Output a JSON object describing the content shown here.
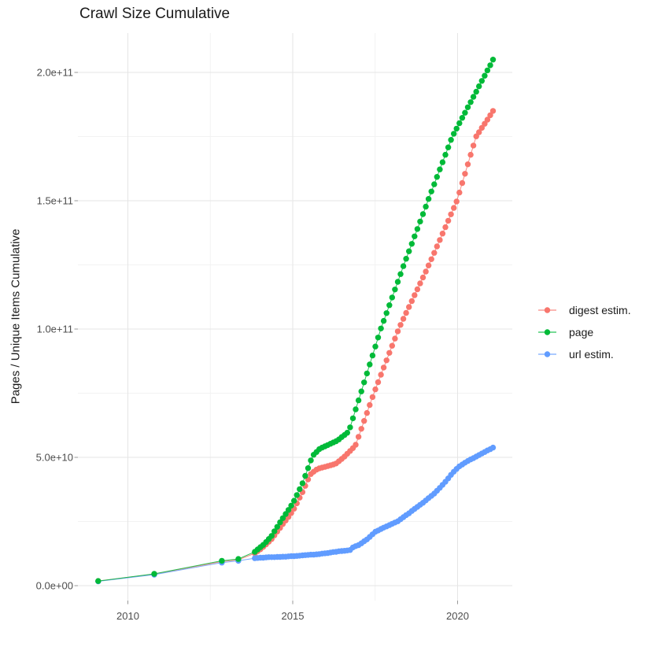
{
  "title": "Crawl Size Cumulative",
  "axes": {
    "y": {
      "title": "Pages / Unique Items Cumulative",
      "tick_labels": [
        "0.0e+00",
        "5.0e+10",
        "1.0e+11",
        "1.5e+11",
        "2.0e+11"
      ],
      "tick_values_billions": [
        0,
        50,
        100,
        150,
        200
      ],
      "minor_tick_values_billions": [
        25,
        75,
        125,
        175
      ]
    },
    "x": {
      "tick_labels": [
        "2010",
        "2015",
        "2020"
      ],
      "tick_values": [
        2010,
        2015,
        2020
      ],
      "minor_tick_values": [
        2012.5,
        2017.5
      ]
    }
  },
  "legend": {
    "items": [
      {
        "label": "digest estim.",
        "color": "#F8766D"
      },
      {
        "label": "page",
        "color": "#00BA38"
      },
      {
        "label": "url estim.",
        "color": "#619CFF"
      }
    ]
  },
  "chart_data": {
    "type": "line",
    "title": "Crawl Size Cumulative",
    "xlabel": "",
    "ylabel": "Pages / Unique Items Cumulative",
    "x_unit": "decimal year",
    "value_unit": "billions of items (1e9)",
    "x_range": [
      2008.5,
      2021.7
    ],
    "y_range_billions": [
      0,
      215
    ],
    "grid": true,
    "legend_position": "right",
    "series": [
      {
        "name": "digest estim.",
        "color": "#F8766D",
        "early_points": [
          [
            2009.1,
            1.8
          ],
          [
            2010.8,
            4.5
          ],
          [
            2012.85,
            9.4
          ],
          [
            2013.35,
            10.1
          ]
        ],
        "dense_start_year": 2013.85,
        "dense_step_years": 0.085,
        "dense_values": [
          12.6,
          13.4,
          14.2,
          15.1,
          16.1,
          17.1,
          18.2,
          19.6,
          21.1,
          22.5,
          24.0,
          25.4,
          26.8,
          28.3,
          30.0,
          32.1,
          34.3,
          36.4,
          38.9,
          41.4,
          43.5,
          44.4,
          45.2,
          45.7,
          46.0,
          46.3,
          46.6,
          46.9,
          47.2,
          47.6,
          48.5,
          49.4,
          50.3,
          51.4,
          52.5,
          53.6,
          54.9,
          58.0,
          61.1,
          64.2,
          67.3,
          70.4,
          73.5,
          76.5,
          79.3,
          82.2,
          85.0,
          87.8,
          90.7,
          93.5,
          96.3,
          99.1,
          101.6,
          104.0,
          106.3,
          108.6,
          110.9,
          113.2,
          115.5,
          117.8,
          120.1,
          122.4,
          124.8,
          127.2,
          129.7,
          132.2,
          134.7,
          137.2,
          139.7,
          142.2,
          144.7,
          147.2,
          149.7,
          153.2,
          156.9,
          160.5,
          164.2,
          167.9,
          171.5,
          175.1,
          176.7,
          178.4,
          180.0,
          181.6,
          183.3,
          185.0
        ]
      },
      {
        "name": "page",
        "color": "#00BA38",
        "early_points": [
          [
            2009.1,
            1.8
          ],
          [
            2010.8,
            4.6
          ],
          [
            2012.85,
            9.7
          ],
          [
            2013.35,
            10.4
          ]
        ],
        "dense_start_year": 2013.85,
        "dense_step_years": 0.085,
        "dense_values": [
          13.2,
          14.1,
          15.0,
          15.9,
          17.0,
          18.2,
          19.4,
          21.2,
          22.9,
          24.7,
          26.3,
          27.9,
          29.5,
          31.2,
          33.1,
          35.3,
          37.6,
          39.9,
          42.8,
          45.8,
          48.8,
          51.0,
          52.1,
          53.2,
          53.8,
          54.3,
          54.8,
          55.3,
          55.8,
          56.3,
          57.0,
          57.9,
          58.7,
          59.6,
          61.7,
          65.2,
          68.7,
          72.2,
          75.7,
          79.2,
          82.7,
          86.2,
          89.7,
          93.2,
          96.7,
          100.2,
          103.2,
          106.2,
          109.3,
          112.3,
          115.4,
          118.4,
          121.4,
          124.5,
          127.4,
          130.3,
          133.2,
          136.1,
          139.0,
          141.9,
          144.8,
          147.7,
          150.7,
          153.6,
          156.4,
          159.3,
          162.2,
          165.0,
          167.9,
          170.8,
          173.7,
          176.1,
          178.1,
          180.2,
          182.3,
          184.3,
          186.4,
          188.4,
          190.5,
          192.5,
          194.6,
          196.7,
          198.7,
          200.8,
          202.8,
          205.0
        ]
      },
      {
        "name": "url estim.",
        "color": "#619CFF",
        "early_points": [
          [
            2009.1,
            1.7
          ],
          [
            2010.8,
            4.3
          ],
          [
            2012.85,
            9.0
          ],
          [
            2013.35,
            9.7
          ]
        ],
        "dense_start_year": 2013.85,
        "dense_step_years": 0.085,
        "dense_values": [
          10.7,
          10.8,
          10.9,
          10.9,
          11.0,
          11.1,
          11.1,
          11.1,
          11.2,
          11.2,
          11.3,
          11.3,
          11.4,
          11.5,
          11.5,
          11.6,
          11.7,
          11.8,
          11.9,
          12.0,
          12.1,
          12.1,
          12.2,
          12.3,
          12.5,
          12.6,
          12.7,
          12.9,
          13.1,
          13.2,
          13.4,
          13.5,
          13.6,
          13.7,
          13.9,
          14.9,
          15.4,
          15.8,
          16.5,
          17.3,
          18.0,
          19.0,
          20.0,
          21.0,
          21.5,
          22.1,
          22.6,
          23.1,
          23.6,
          24.1,
          24.6,
          25.1,
          25.9,
          26.7,
          27.5,
          28.2,
          29.1,
          29.9,
          30.7,
          31.5,
          32.3,
          33.2,
          34.1,
          35.0,
          35.9,
          37.0,
          38.1,
          39.3,
          40.5,
          41.8,
          43.2,
          44.4,
          45.5,
          46.5,
          47.2,
          47.9,
          48.6,
          49.2,
          49.7,
          50.3,
          50.9,
          51.5,
          52.1,
          52.7,
          53.2,
          53.8
        ]
      }
    ]
  }
}
